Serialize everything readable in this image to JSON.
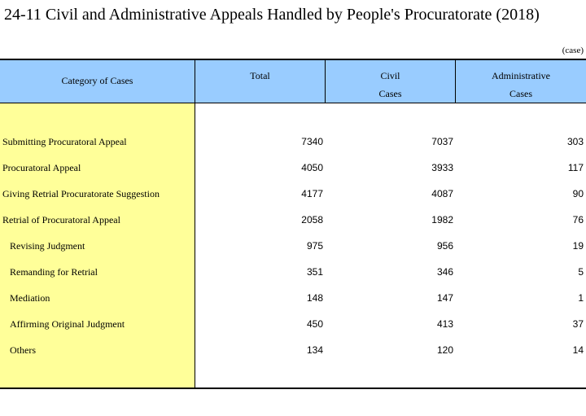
{
  "title": "24-11  Civil and Administrative Appeals Handled by People's Procuratorate (2018)",
  "unit": "(case)",
  "header": {
    "category": "Category of Cases",
    "total": "Total",
    "civil_line1": "Civil",
    "civil_line2": "Cases",
    "admin_line1": "Administrative",
    "admin_line2": "Cases"
  },
  "rows": [
    {
      "label": "Submitting Procuratoral Appeal",
      "total": "7340",
      "civil": "7037",
      "admin": "303"
    },
    {
      "label": "Procuratoral Appeal",
      "total": "4050",
      "civil": "3933",
      "admin": "117"
    },
    {
      "label": "Giving Retrial Procuratorate Suggestion",
      "total": "4177",
      "civil": "4087",
      "admin": "90"
    },
    {
      "label": "Retrial of Procuratoral Appeal",
      "total": "2058",
      "civil": "1982",
      "admin": "76"
    },
    {
      "label": "Revising Judgment",
      "total": "975",
      "civil": "956",
      "admin": "19"
    },
    {
      "label": "Remanding for Retrial",
      "total": "351",
      "civil": "346",
      "admin": "5"
    },
    {
      "label": "Mediation",
      "total": "148",
      "civil": "147",
      "admin": "1"
    },
    {
      "label": "Affirming Original Judgment",
      "total": "450",
      "civil": "413",
      "admin": "37"
    },
    {
      "label": "Others",
      "total": "134",
      "civil": "120",
      "admin": "14"
    }
  ]
}
